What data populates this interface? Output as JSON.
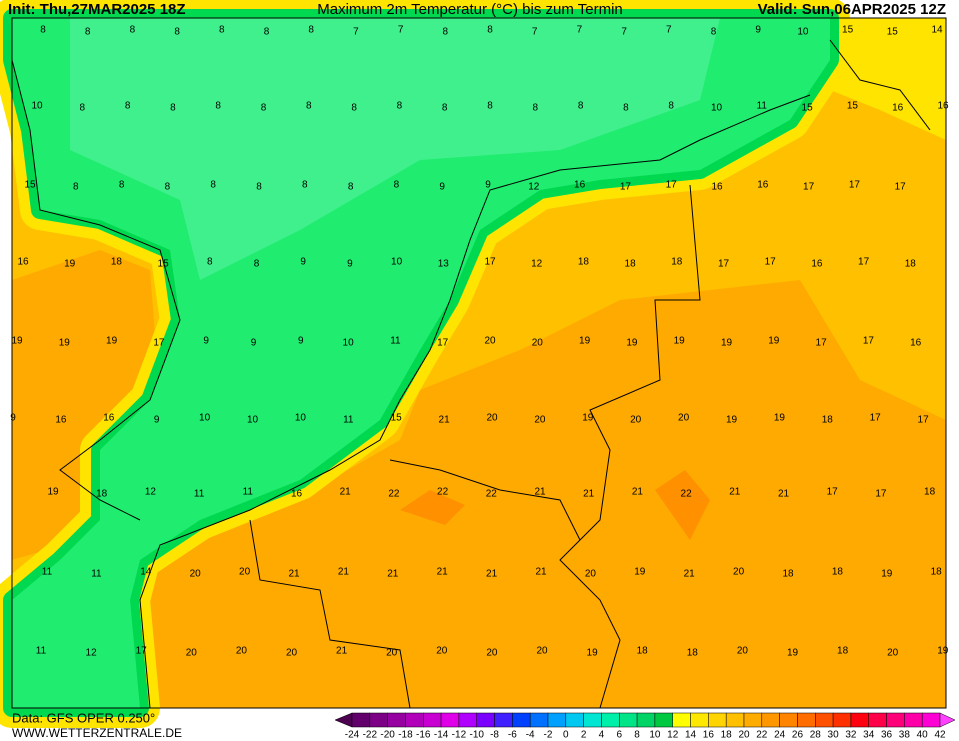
{
  "header": {
    "init": "Init: Thu,27MAR2025 18Z",
    "title": "Maximum 2m Temperatur (°C) bis zum Termin",
    "valid": "Valid: Sun,06APR2025 12Z"
  },
  "footer": {
    "data": "Data: GFS OPER 0.250°",
    "site": "WWW.WETTERZENTRALE.DE"
  },
  "legend": {
    "ticks": [
      -24,
      -22,
      -20,
      -18,
      -16,
      -14,
      -12,
      -10,
      -8,
      -6,
      -4,
      -2,
      0,
      2,
      4,
      6,
      8,
      10,
      12,
      14,
      16,
      18,
      20,
      22,
      24,
      26,
      28,
      30,
      32,
      34,
      36,
      38,
      40,
      42
    ],
    "colors": [
      "#4b0050",
      "#62006c",
      "#7c0086",
      "#9600a0",
      "#b000ba",
      "#c800d2",
      "#e000e8",
      "#b000ff",
      "#7a00ff",
      "#4020ff",
      "#0040ff",
      "#0070ff",
      "#00a0ff",
      "#00c8f0",
      "#00e6d2",
      "#00f0aa",
      "#00e488",
      "#00d464",
      "#00c840",
      "#ffff00",
      "#ffe800",
      "#ffd400",
      "#ffc000",
      "#ffac00",
      "#ff9800",
      "#ff8400",
      "#ff6c00",
      "#ff5000",
      "#ff3000",
      "#ff0010",
      "#ff0048",
      "#ff0078",
      "#ff00a8",
      "#ff00d4",
      "#ff40ff"
    ]
  },
  "grid_labels": {
    "rows": [
      [
        8,
        8,
        8,
        8,
        8,
        8,
        8,
        7,
        7,
        8,
        8,
        7,
        7,
        7,
        7,
        8,
        9,
        10,
        15,
        15,
        14
      ],
      [
        10,
        8,
        8,
        8,
        8,
        8,
        8,
        8,
        8,
        8,
        8,
        8,
        8,
        8,
        8,
        10,
        11,
        15,
        15,
        16,
        16
      ],
      [
        15,
        8,
        8,
        8,
        8,
        8,
        8,
        8,
        8,
        9,
        9,
        12,
        16,
        17,
        17,
        16,
        16,
        17,
        17,
        17
      ],
      [
        16,
        19,
        18,
        15,
        8,
        8,
        9,
        9,
        10,
        13,
        17,
        12,
        18,
        18,
        18,
        17,
        17,
        16,
        17,
        18
      ],
      [
        19,
        19,
        19,
        17,
        9,
        9,
        9,
        10,
        11,
        17,
        20,
        20,
        19,
        19,
        19,
        19,
        19,
        17,
        17,
        16
      ],
      [
        9,
        16,
        16,
        9,
        10,
        10,
        10,
        11,
        15,
        21,
        20,
        20,
        19,
        20,
        20,
        19,
        19,
        18,
        17,
        17
      ],
      [
        19,
        18,
        12,
        11,
        11,
        16,
        21,
        22,
        22,
        22,
        21,
        21,
        21,
        22,
        21,
        21,
        17,
        17,
        18
      ],
      [
        11,
        11,
        14,
        20,
        20,
        21,
        21,
        21,
        21,
        21,
        21,
        20,
        19,
        21,
        20,
        18,
        18,
        19,
        18
      ],
      [
        11,
        12,
        17,
        20,
        20,
        20,
        21,
        20,
        20,
        20,
        20,
        19,
        18,
        18,
        20,
        19,
        18,
        20,
        19
      ]
    ]
  }
}
